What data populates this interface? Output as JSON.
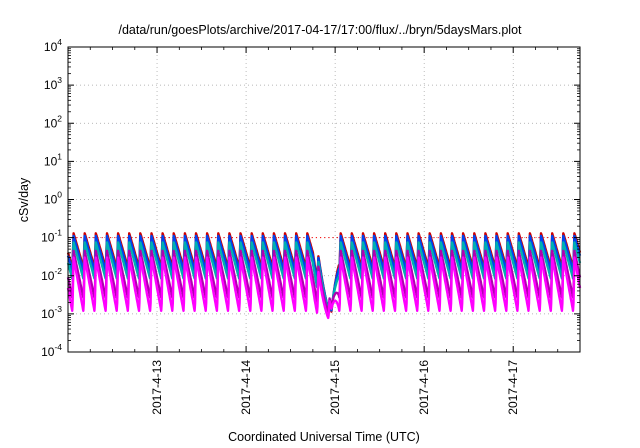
{
  "chart_data": {
    "type": "line",
    "title": "/data/run/goesPlots/archive/2017-04-17/17:00/flux/../bryn/5daysMars.plot",
    "xlabel": "Coordinated Universal Time (UTC)",
    "ylabel": "cSv/day",
    "yscale": "log",
    "ylim": [
      0.0001,
      10000
    ],
    "yticks": [
      {
        "value": 0.0001,
        "base": "10",
        "exp": "-4"
      },
      {
        "value": 0.001,
        "base": "10",
        "exp": "-3"
      },
      {
        "value": 0.01,
        "base": "10",
        "exp": "-2"
      },
      {
        "value": 0.1,
        "base": "10",
        "exp": "-1"
      },
      {
        "value": 1,
        "base": "10",
        "exp": "0"
      },
      {
        "value": 10,
        "base": "10",
        "exp": "1"
      },
      {
        "value": 100,
        "base": "10",
        "exp": "2"
      },
      {
        "value": 1000,
        "base": "10",
        "exp": "3"
      },
      {
        "value": 10000,
        "base": "10",
        "exp": "4"
      }
    ],
    "xlim": [
      "2017-04-12 00:00",
      "2017-04-17 18:00"
    ],
    "xticks": [
      {
        "value": "2017-04-13 00:00",
        "label": "2017-4-13"
      },
      {
        "value": "2017-04-14 00:00",
        "label": "2017-4-14"
      },
      {
        "value": "2017-04-15 00:00",
        "label": "2017-4-15"
      },
      {
        "value": "2017-04-16 00:00",
        "label": "2017-4-16"
      },
      {
        "value": "2017-04-17 00:00",
        "label": "2017-4-17"
      }
    ],
    "grid": true,
    "reference_line": {
      "y": 0.1,
      "color": "#ff0000",
      "style": "dotted"
    },
    "period_hours": 3.0,
    "series": [
      {
        "color": "#d00000",
        "peak": 0.13,
        "trough": 0.016
      },
      {
        "color": "#0044ee",
        "peak": 0.11,
        "trough": 0.013
      },
      {
        "color": "#00b0b0",
        "peak": 0.075,
        "trough": 0.008
      },
      {
        "color": "#b000b0",
        "peak": 0.045,
        "trough": 0.0025
      },
      {
        "color": "#ff00ff",
        "peak": 0.03,
        "trough": 0.0011
      }
    ],
    "dip": {
      "start": "2017-04-14 18:00",
      "min": "2017-04-14 23:00",
      "end": "2017-04-15 01:00",
      "min_values": [
        0.00075,
        0.0008,
        0.00085,
        0.0009,
        0.0007
      ]
    }
  }
}
